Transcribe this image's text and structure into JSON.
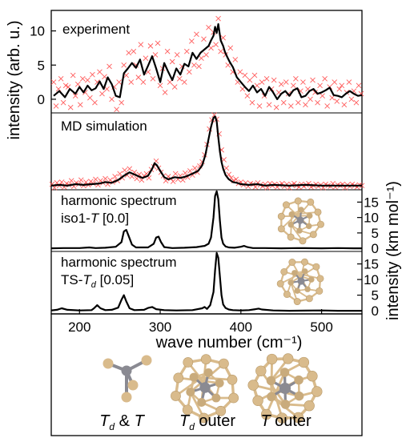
{
  "chart_data": {
    "type": "line",
    "xlabel": "wave number (cm⁻¹)",
    "xlim": [
      165,
      550
    ],
    "x_ticks": [
      200,
      300,
      400,
      500
    ],
    "left_ylabel": "intensity (arb. u.)",
    "right_ylabel": "intensity (km mol⁻¹)",
    "colors": {
      "line": "#000000",
      "scatter": "#ff4040",
      "atom_outer": "#d9bb8c",
      "atom_center": "#8a8a92"
    },
    "panels": [
      {
        "id": "experiment",
        "label": "experiment",
        "ylim": [
          -2,
          13
        ],
        "y_ticks": [
          0,
          5,
          10
        ],
        "line_x": [
          168,
          175,
          182,
          188,
          195,
          200,
          205,
          210,
          215,
          220,
          225,
          230,
          235,
          240,
          245,
          250,
          255,
          260,
          265,
          270,
          275,
          280,
          285,
          290,
          295,
          300,
          305,
          310,
          315,
          320,
          325,
          330,
          335,
          340,
          345,
          350,
          355,
          360,
          363,
          366,
          368,
          370,
          372,
          375,
          378,
          380,
          383,
          386,
          390,
          395,
          400,
          405,
          410,
          415,
          420,
          425,
          430,
          435,
          440,
          445,
          450,
          455,
          460,
          465,
          470,
          475,
          480,
          485,
          490,
          495,
          500,
          505,
          510,
          515,
          520,
          525,
          530,
          535,
          540,
          545,
          550
        ],
        "line_y": [
          0.5,
          1.2,
          0.3,
          1.5,
          0.8,
          1.8,
          1.0,
          2.0,
          1.3,
          1.6,
          2.6,
          1.5,
          3.2,
          2.2,
          0.5,
          0.3,
          3.8,
          4.5,
          5.3,
          4.6,
          5.8,
          3.6,
          4.9,
          6.3,
          4.5,
          2.5,
          5.3,
          4.0,
          2.8,
          4.5,
          3.6,
          5.2,
          4.8,
          6.8,
          5.9,
          6.8,
          7.3,
          7.8,
          8.6,
          9.3,
          10.6,
          9.7,
          11.0,
          8.6,
          7.8,
          7.0,
          6.2,
          5.5,
          4.7,
          3.2,
          2.5,
          1.8,
          1.2,
          2.0,
          1.0,
          1.5,
          0.5,
          1.8,
          1.0,
          0.0,
          0.8,
          1.2,
          0.5,
          1.3,
          1.6,
          0.3,
          0.5,
          1.2,
          1.5,
          0.8,
          1.0,
          1.3,
          1.7,
          0.6,
          0.5,
          0.3,
          0.8,
          1.2,
          0.8,
          0.5,
          0.6
        ],
        "scatter_x": [
          168,
          171,
          174,
          177,
          180,
          183,
          186,
          189,
          192,
          195,
          198,
          201,
          204,
          207,
          210,
          213,
          216,
          219,
          222,
          225,
          228,
          231,
          234,
          237,
          240,
          243,
          246,
          249,
          252,
          255,
          258,
          261,
          264,
          267,
          270,
          273,
          276,
          279,
          282,
          285,
          288,
          291,
          294,
          297,
          300,
          303,
          306,
          309,
          312,
          315,
          318,
          321,
          324,
          327,
          330,
          333,
          336,
          339,
          342,
          345,
          348,
          351,
          354,
          357,
          360,
          363,
          366,
          369,
          372,
          375,
          378,
          381,
          384,
          387,
          390,
          393,
          396,
          399,
          402,
          405,
          408,
          411,
          414,
          417,
          420,
          423,
          426,
          429,
          432,
          435,
          438,
          441,
          444,
          447,
          450,
          453,
          456,
          459,
          462,
          465,
          468,
          471,
          474,
          477,
          480,
          483,
          486,
          489,
          492,
          495,
          498,
          501,
          504,
          507,
          510,
          513,
          516,
          519,
          522,
          525,
          528,
          531,
          534,
          537,
          540,
          543,
          546,
          549
        ],
        "scatter_y": [
          2.5,
          -1.0,
          1.5,
          3.0,
          -0.5,
          2.0,
          1.8,
          -1.2,
          3.5,
          0.5,
          2.2,
          -0.8,
          3.0,
          1.0,
          2.8,
          0.2,
          3.6,
          -0.5,
          2.5,
          4.0,
          0.8,
          3.3,
          1.5,
          4.8,
          0.0,
          1.8,
          -1.5,
          2.5,
          -0.5,
          5.0,
          3.5,
          6.8,
          2.5,
          7.0,
          5.0,
          3.2,
          8.0,
          2.5,
          6.0,
          4.0,
          7.8,
          3.0,
          6.5,
          8.2,
          2.0,
          4.5,
          1.0,
          7.0,
          2.5,
          5.5,
          1.8,
          6.5,
          3.0,
          4.8,
          2.5,
          7.0,
          4.0,
          8.5,
          5.0,
          9.5,
          4.8,
          6.0,
          8.8,
          6.5,
          10.5,
          7.5,
          9.8,
          8.0,
          11.8,
          7.0,
          9.0,
          6.5,
          5.0,
          7.5,
          4.0,
          5.8,
          2.5,
          4.0,
          1.5,
          3.5,
          0.5,
          2.8,
          -0.5,
          3.5,
          2.0,
          -1.0,
          2.5,
          0.5,
          3.0,
          -0.8,
          1.5,
          2.8,
          -1.2,
          1.0,
          2.2,
          -0.5,
          2.5,
          0.8,
          -1.0,
          2.0,
          3.0,
          -0.5,
          1.2,
          2.5,
          -0.8,
          1.5,
          0.0,
          2.8,
          1.0,
          -0.5,
          2.0,
          0.5,
          3.0,
          -1.0,
          1.8,
          0.2,
          2.5,
          -0.3,
          1.5,
          2.0,
          -0.8,
          1.0,
          2.5,
          0.0,
          1.2,
          -0.5,
          2.0,
          0.8
        ]
      },
      {
        "id": "md",
        "label": "MD simulation",
        "ylim": [
          -0.5,
          10.5
        ],
        "line_x": [
          165,
          175,
          185,
          195,
          205,
          215,
          225,
          232,
          240,
          248,
          255,
          262,
          270,
          278,
          285,
          290,
          293,
          296,
          300,
          305,
          310,
          318,
          325,
          332,
          340,
          347,
          352,
          356,
          360,
          363,
          366,
          368,
          370,
          372,
          374,
          376,
          378,
          381,
          385,
          390,
          395,
          400,
          410,
          420,
          430,
          440,
          460,
          480,
          500,
          520,
          540,
          550
        ],
        "line_y": [
          0.1,
          0.2,
          0.1,
          0.3,
          0.2,
          0.3,
          0.4,
          0.6,
          0.5,
          0.9,
          1.5,
          2.0,
          1.6,
          1.2,
          1.5,
          2.5,
          3.3,
          3.0,
          2.2,
          1.3,
          1.0,
          1.3,
          1.2,
          1.4,
          1.8,
          2.2,
          3.0,
          4.5,
          6.8,
          8.5,
          9.8,
          10.0,
          9.3,
          7.0,
          5.0,
          3.5,
          2.5,
          1.6,
          1.0,
          0.6,
          0.5,
          0.3,
          0.2,
          0.3,
          0.1,
          0.2,
          0.1,
          0.2,
          0.1,
          0.1,
          0.1,
          0.1
        ],
        "scatter_x": [
          166,
          169,
          172,
          175,
          178,
          181,
          184,
          187,
          190,
          193,
          196,
          199,
          202,
          205,
          208,
          211,
          214,
          217,
          220,
          223,
          226,
          229,
          232,
          235,
          238,
          241,
          244,
          247,
          250,
          253,
          256,
          259,
          262,
          265,
          268,
          271,
          274,
          277,
          280,
          283,
          286,
          289,
          292,
          295,
          298,
          301,
          304,
          307,
          310,
          313,
          316,
          319,
          322,
          325,
          328,
          331,
          334,
          337,
          340,
          343,
          346,
          349,
          352,
          355,
          358,
          361,
          364,
          367,
          370,
          373,
          376,
          379,
          382,
          385,
          388,
          391,
          394,
          397,
          400,
          403,
          406,
          409,
          412,
          415,
          418,
          421,
          424,
          427,
          430,
          433,
          436,
          439,
          442,
          445,
          448,
          451,
          454,
          457,
          460,
          463,
          466,
          469,
          472,
          475,
          478,
          481,
          484,
          487,
          490,
          493,
          496,
          499,
          502,
          505,
          508,
          511,
          514,
          517,
          520,
          523,
          526,
          529,
          532,
          535,
          538,
          541,
          544,
          547,
          550
        ],
        "scatter_y": [
          0.3,
          -0.2,
          0.5,
          0.1,
          0.6,
          -0.1,
          0.4,
          0.2,
          0.8,
          0.0,
          0.5,
          0.3,
          0.9,
          0.1,
          0.6,
          0.2,
          0.7,
          0.4,
          1.0,
          0.2,
          0.8,
          0.5,
          1.1,
          0.3,
          0.9,
          0.6,
          1.4,
          0.8,
          1.8,
          1.2,
          2.3,
          1.6,
          2.5,
          1.4,
          2.0,
          1.1,
          1.7,
          0.9,
          1.5,
          1.8,
          1.2,
          2.4,
          2.8,
          3.6,
          2.6,
          2.0,
          1.5,
          0.8,
          1.4,
          1.1,
          0.7,
          1.8,
          1.0,
          1.5,
          0.9,
          1.9,
          1.3,
          2.2,
          1.6,
          2.6,
          2.0,
          2.9,
          3.5,
          4.5,
          6.0,
          8.2,
          9.5,
          10.2,
          9.6,
          7.5,
          5.2,
          3.8,
          2.6,
          1.7,
          1.2,
          0.8,
          1.0,
          0.4,
          0.6,
          0.2,
          0.5,
          0.0,
          0.4,
          0.3,
          -0.1,
          0.5,
          0.2,
          0.0,
          0.3,
          -0.2,
          0.4,
          0.1,
          0.3,
          -0.1,
          0.2,
          0.4,
          0.0,
          0.3,
          -0.2,
          0.2,
          0.4,
          0.1,
          -0.1,
          0.3,
          0.0,
          0.2,
          0.4,
          -0.1,
          0.1,
          0.3,
          0.0,
          0.2,
          -0.2,
          0.3,
          0.1,
          0.0,
          0.4,
          -0.1,
          0.2,
          0.1,
          0.3,
          -0.2,
          0.2,
          0.0,
          0.3,
          0.1,
          -0.1,
          0.2,
          0.1
        ]
      },
      {
        "id": "iso1",
        "label_line1": "harmonic spectrum",
        "label_line2_prefix": "iso1-",
        "label_line2_italic": "T",
        "label_line2_suffix": " [0.0]",
        "ylim": [
          -1,
          19
        ],
        "y_ticks": [
          0,
          5,
          10,
          15
        ],
        "x": [
          165,
          180,
          200,
          212,
          220,
          232,
          245,
          252,
          255,
          258,
          261,
          265,
          270,
          285,
          292,
          295,
          298,
          301,
          305,
          315,
          330,
          345,
          355,
          360,
          363,
          366,
          368,
          370,
          372,
          374,
          376,
          378,
          381,
          385,
          392,
          400,
          404,
          408,
          415,
          430,
          450,
          470,
          500,
          520,
          540,
          550
        ],
        "y": [
          0.0,
          0.1,
          0.1,
          0.3,
          0.1,
          0.2,
          0.5,
          2.0,
          5.5,
          6.0,
          4.0,
          1.2,
          0.3,
          0.3,
          1.5,
          3.5,
          3.8,
          2.0,
          0.4,
          0.1,
          0.2,
          0.4,
          0.8,
          1.5,
          3.5,
          10.0,
          17.0,
          18.5,
          16.0,
          9.0,
          3.5,
          1.5,
          0.6,
          0.3,
          0.2,
          0.5,
          0.8,
          0.4,
          0.1,
          0.1,
          0.0,
          0.1,
          0.0,
          0.1,
          0.0,
          0.0
        ]
      },
      {
        "id": "ts",
        "label_line1": "harmonic spectrum",
        "label_line2_prefix": "TS-",
        "label_line2_italic": "T",
        "label_line2_sub": "d",
        "label_line2_suffix": "  [0.05]",
        "ylim": [
          -1,
          19
        ],
        "y_ticks": [
          0,
          5,
          10,
          15
        ],
        "x": [
          165,
          172,
          178,
          185,
          200,
          215,
          218,
          222,
          226,
          232,
          240,
          248,
          252,
          255,
          258,
          262,
          268,
          280,
          285,
          290,
          295,
          305,
          320,
          340,
          352,
          355,
          358,
          362,
          366,
          368,
          370,
          372,
          374,
          376,
          378,
          381,
          385,
          390,
          400,
          410,
          418,
          422,
          426,
          440,
          460,
          500,
          520,
          550
        ],
        "y": [
          0.1,
          0.3,
          0.8,
          0.3,
          0.1,
          0.2,
          0.8,
          1.8,
          0.8,
          0.2,
          0.3,
          1.0,
          3.5,
          5.0,
          3.0,
          0.8,
          0.2,
          0.3,
          0.9,
          1.2,
          0.5,
          0.2,
          0.1,
          0.2,
          0.8,
          1.2,
          0.6,
          1.8,
          6.0,
          13.0,
          18.5,
          17.0,
          11.0,
          5.0,
          2.0,
          0.9,
          0.4,
          0.2,
          0.1,
          0.2,
          0.5,
          0.7,
          0.4,
          0.1,
          0.0,
          0.1,
          0.0,
          0.0
        ]
      }
    ],
    "structures": [
      {
        "type": "T-shape"
      },
      {
        "type": "cluster"
      },
      {
        "type": "cluster"
      }
    ],
    "structure_labels": [
      {
        "main": "T",
        "sub": "d",
        "rest": " & ",
        "main2": "T"
      },
      {
        "main": "T",
        "sub": "d",
        "rest": " outer"
      },
      {
        "main": "T",
        "rest": " outer"
      }
    ]
  }
}
